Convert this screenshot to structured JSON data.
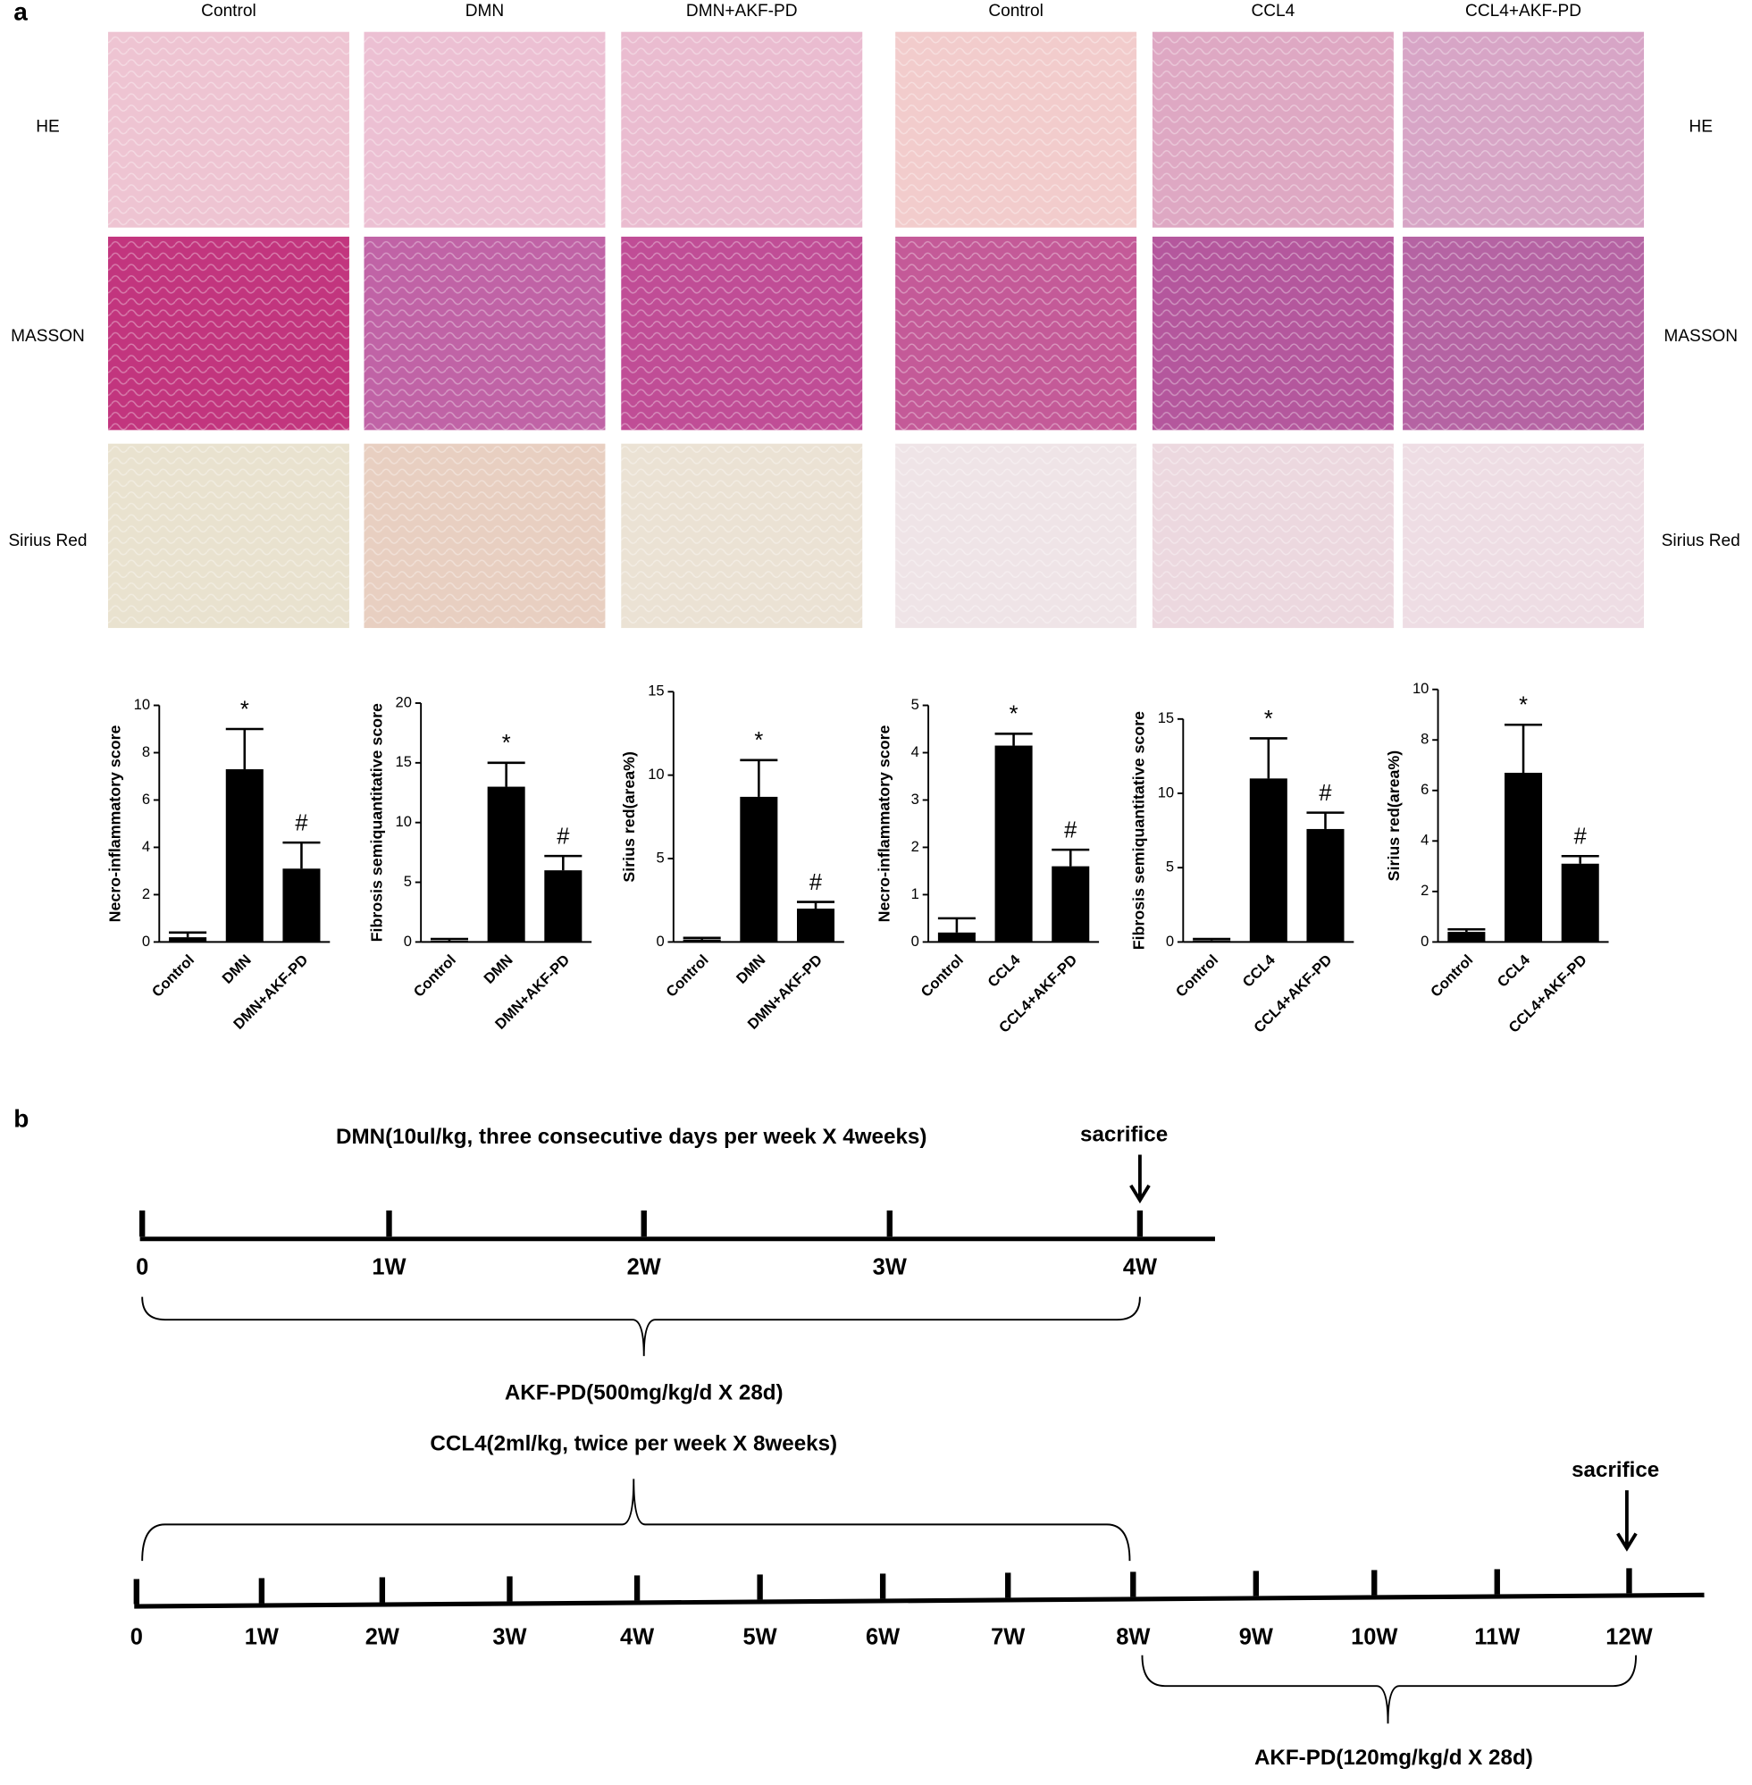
{
  "panels": {
    "a": "a",
    "b": "b"
  },
  "histology": {
    "columns": [
      "Control",
      "DMN",
      "DMN+AKF-PD",
      "Control",
      "CCL4",
      "CCL4+AKF-PD"
    ],
    "row_labels_left": [
      "HE",
      "MASSON",
      "Sirius Red"
    ],
    "row_labels_right": [
      "HE",
      "MASSON",
      "Sirius Red"
    ]
  },
  "chart_data": [
    {
      "type": "bar",
      "ylabel": "Necro-inflammatory score",
      "categories": [
        "Control",
        "DMN",
        "DMN+AKF-PD"
      ],
      "values": [
        0.2,
        7.3,
        3.1
      ],
      "errors": [
        0.2,
        1.7,
        1.1
      ],
      "markers": [
        null,
        "*",
        "#"
      ],
      "color": "#000000",
      "ylim": [
        0,
        10
      ],
      "yticks": [
        0,
        2,
        4,
        6,
        8,
        10
      ]
    },
    {
      "type": "bar",
      "ylabel": "Fibrosis semiquantitative score",
      "categories": [
        "Control",
        "DMN",
        "DMN+AKF-PD"
      ],
      "values": [
        0.1,
        13,
        6
      ],
      "errors": [
        0.15,
        2,
        1.2
      ],
      "markers": [
        null,
        "*",
        "#"
      ],
      "color": "#000000",
      "ylim": [
        0,
        20
      ],
      "yticks": [
        0,
        5,
        10,
        15,
        20
      ]
    },
    {
      "type": "bar",
      "ylabel": "Sirius red(area%)",
      "categories": [
        "Control",
        "DMN",
        "DMN+AKF-PD"
      ],
      "values": [
        0.15,
        8.7,
        2
      ],
      "errors": [
        0.1,
        2.2,
        0.4
      ],
      "markers": [
        null,
        "*",
        "#"
      ],
      "color": "#000000",
      "ylim": [
        0,
        15
      ],
      "yticks": [
        0,
        5,
        10,
        15
      ]
    },
    {
      "type": "bar",
      "ylabel": "Necro-inflammatory score",
      "categories": [
        "Control",
        "CCL4",
        "CCL4+AKF-PD"
      ],
      "values": [
        0.2,
        4.15,
        1.6
      ],
      "errors": [
        0.3,
        0.25,
        0.35
      ],
      "markers": [
        null,
        "*",
        "#"
      ],
      "color": "#000000",
      "ylim": [
        0,
        5
      ],
      "yticks": [
        0,
        1,
        2,
        3,
        4,
        5
      ]
    },
    {
      "type": "bar",
      "ylabel": "Fibrosis semiquantitative score",
      "categories": [
        "Control",
        "CCL4",
        "CCL4+AKF-PD"
      ],
      "values": [
        0.1,
        11,
        7.6
      ],
      "errors": [
        0.1,
        2.7,
        1.1
      ],
      "markers": [
        null,
        "*",
        "#"
      ],
      "color": "#000000",
      "ylim": [
        0,
        15
      ],
      "yticks": [
        0,
        5,
        10,
        15
      ]
    },
    {
      "type": "bar",
      "ylabel": "Sirius red(area%)",
      "categories": [
        "Control",
        "CCL4",
        "CCL4+AKF-PD"
      ],
      "values": [
        0.4,
        6.7,
        3.1
      ],
      "errors": [
        0.1,
        1.9,
        0.3
      ],
      "markers": [
        null,
        "*",
        "#"
      ],
      "color": "#000000",
      "ylim": [
        0,
        10
      ],
      "yticks": [
        0,
        2,
        4,
        6,
        8,
        10
      ]
    }
  ],
  "timeline_dmn": {
    "title": "DMN(10ul/kg, three consecutive days per week X 4weeks)",
    "sacrifice": "sacrifice",
    "ticks": [
      "0",
      "1W",
      "2W",
      "3W",
      "4W"
    ],
    "treatment": "AKF-PD(500mg/kg/d X 28d)"
  },
  "timeline_ccl4": {
    "title": "CCL4(2ml/kg, twice per week X 8weeks)",
    "sacrifice": "sacrifice",
    "ticks": [
      "0",
      "1W",
      "2W",
      "3W",
      "4W",
      "5W",
      "6W",
      "7W",
      "8W",
      "9W",
      "10W",
      "11W",
      "12W"
    ],
    "treatment": "AKF-PD(120mg/kg/d X 28d)"
  }
}
